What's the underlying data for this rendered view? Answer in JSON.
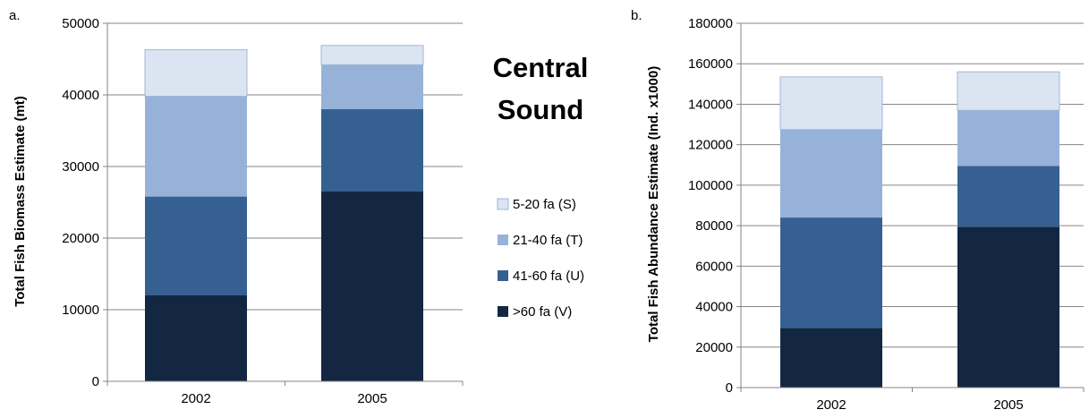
{
  "figure_title": [
    "Central",
    "Sound"
  ],
  "legend": [
    {
      "label": "5-20 fa (S)",
      "color": "#dbe5f2"
    },
    {
      "label": "21-40 fa (T)",
      "color": "#96b2d8"
    },
    {
      "label": "41-60 fa (U)",
      "color": "#366092"
    },
    {
      "label": ">60 fa (V)",
      "color": "#132743"
    }
  ],
  "chart_data": [
    {
      "type": "bar",
      "stacked": true,
      "panel_label": "a.",
      "categories": [
        "2002",
        "2005"
      ],
      "ylabel": "Total Fish Biomass Estimate (mt)",
      "xlabel": "",
      "ylim": [
        0,
        50000
      ],
      "yticks": [
        "0",
        "10000",
        "20000",
        "30000",
        "40000",
        "50000"
      ],
      "grid": true,
      "series": [
        {
          "name": ">60 fa (V)",
          "values": [
            12000,
            26500
          ]
        },
        {
          "name": "41-60 fa (U)",
          "values": [
            13800,
            11500
          ]
        },
        {
          "name": "21-40 fa (T)",
          "values": [
            14000,
            6200
          ]
        },
        {
          "name": "5-20 fa (S)",
          "values": [
            6500,
            2700
          ]
        }
      ]
    },
    {
      "type": "bar",
      "stacked": true,
      "panel_label": "b.",
      "categories": [
        "2002",
        "2005"
      ],
      "ylabel": "Total Fish Abundance Estimate (Ind. x1000)",
      "xlabel": "",
      "ylim": [
        0,
        180000
      ],
      "yticks": [
        "0",
        "20000",
        "40000",
        "60000",
        "80000",
        "100000",
        "120000",
        "140000",
        "160000",
        "180000"
      ],
      "grid": true,
      "series": [
        {
          "name": ">60 fa (V)",
          "values": [
            29500,
            79500
          ]
        },
        {
          "name": "41-60 fa (U)",
          "values": [
            54500,
            30000
          ]
        },
        {
          "name": "21-40 fa (T)",
          "values": [
            43500,
            27500
          ]
        },
        {
          "name": "5-20 fa (S)",
          "values": [
            26000,
            19000
          ]
        }
      ]
    }
  ]
}
